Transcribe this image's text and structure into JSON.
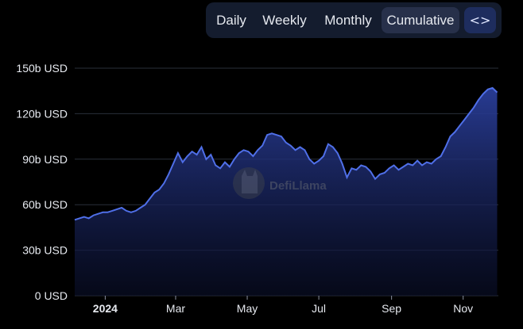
{
  "toolbar": {
    "tabs": [
      "Daily",
      "Weekly",
      "Monthly",
      "Cumulative"
    ],
    "active_tab": "Cumulative",
    "embed_icon": "code-icon",
    "embed_label": "<>"
  },
  "watermark": {
    "text": "DefiLlama",
    "icon": "llama-logo-icon"
  },
  "chart_data": {
    "type": "area",
    "title": "",
    "xlabel": "",
    "ylabel": "",
    "ylim": [
      0,
      150
    ],
    "yticks": [
      0,
      30,
      60,
      90,
      120,
      150
    ],
    "ytick_labels": [
      "0 USD",
      "30b USD",
      "60b USD",
      "90b USD",
      "120b USD",
      "150b USD"
    ],
    "xticks": [
      {
        "date": "2024-01-01",
        "label": "2024",
        "bold": true
      },
      {
        "date": "2024-03-01",
        "label": "Mar",
        "bold": false
      },
      {
        "date": "2024-05-01",
        "label": "May",
        "bold": false
      },
      {
        "date": "2024-07-01",
        "label": "Jul",
        "bold": false
      },
      {
        "date": "2024-09-01",
        "label": "Sep",
        "bold": false
      },
      {
        "date": "2024-11-01",
        "label": "Nov",
        "bold": false
      }
    ],
    "xrange": [
      "2023-12-06",
      "2024-12-01"
    ],
    "grid": true,
    "legend": "none",
    "colors": {
      "line": "#4f6fe8",
      "fill_top": "#2a3e9a",
      "fill_bottom": "#0a0f2a",
      "grid": "#2a2f3a"
    },
    "series": [
      {
        "x": [
          "2023-12-06",
          "2023-12-10",
          "2023-12-14",
          "2023-12-18",
          "2023-12-22",
          "2023-12-26",
          "2023-12-30",
          "2024-01-03",
          "2024-01-07",
          "2024-01-11",
          "2024-01-15",
          "2024-01-19",
          "2024-01-23",
          "2024-01-27",
          "2024-01-31",
          "2024-02-04",
          "2024-02-08",
          "2024-02-12",
          "2024-02-16",
          "2024-02-20",
          "2024-02-24",
          "2024-02-28",
          "2024-03-03",
          "2024-03-07",
          "2024-03-11",
          "2024-03-15",
          "2024-03-19",
          "2024-03-23",
          "2024-03-27",
          "2024-03-31",
          "2024-04-04",
          "2024-04-08",
          "2024-04-12",
          "2024-04-16",
          "2024-04-20",
          "2024-04-24",
          "2024-04-28",
          "2024-05-02",
          "2024-05-06",
          "2024-05-10",
          "2024-05-14",
          "2024-05-18",
          "2024-05-22",
          "2024-05-26",
          "2024-05-30",
          "2024-06-03",
          "2024-06-07",
          "2024-06-11",
          "2024-06-15",
          "2024-06-19",
          "2024-06-23",
          "2024-06-27",
          "2024-07-01",
          "2024-07-05",
          "2024-07-09",
          "2024-07-13",
          "2024-07-17",
          "2024-07-21",
          "2024-07-25",
          "2024-07-29",
          "2024-08-02",
          "2024-08-06",
          "2024-08-10",
          "2024-08-14",
          "2024-08-18",
          "2024-08-22",
          "2024-08-26",
          "2024-08-30",
          "2024-09-03",
          "2024-09-07",
          "2024-09-11",
          "2024-09-15",
          "2024-09-19",
          "2024-09-23",
          "2024-09-27",
          "2024-10-01",
          "2024-10-05",
          "2024-10-09",
          "2024-10-13",
          "2024-10-17",
          "2024-10-21",
          "2024-10-25",
          "2024-10-29",
          "2024-11-02",
          "2024-11-06",
          "2024-11-10",
          "2024-11-14",
          "2024-11-18",
          "2024-11-22",
          "2024-11-26",
          "2024-11-30"
        ],
        "y": [
          50,
          51,
          52,
          51,
          53,
          54,
          55,
          55,
          56,
          57,
          58,
          56,
          55,
          56,
          58,
          60,
          64,
          68,
          70,
          74,
          80,
          87,
          94,
          88,
          92,
          95,
          93,
          98,
          90,
          93,
          86,
          84,
          88,
          85,
          90,
          94,
          96,
          95,
          92,
          96,
          99,
          106,
          107,
          106,
          105,
          101,
          99,
          96,
          98,
          96,
          90,
          87,
          89,
          92,
          100,
          98,
          94,
          87,
          78,
          84,
          83,
          86,
          85,
          82,
          77,
          80,
          81,
          84,
          86,
          83,
          85,
          87,
          86,
          89,
          86,
          88,
          87,
          90,
          92,
          98,
          105,
          108,
          112,
          116,
          120,
          124,
          129,
          133,
          136,
          137,
          134
        ]
      }
    ]
  }
}
